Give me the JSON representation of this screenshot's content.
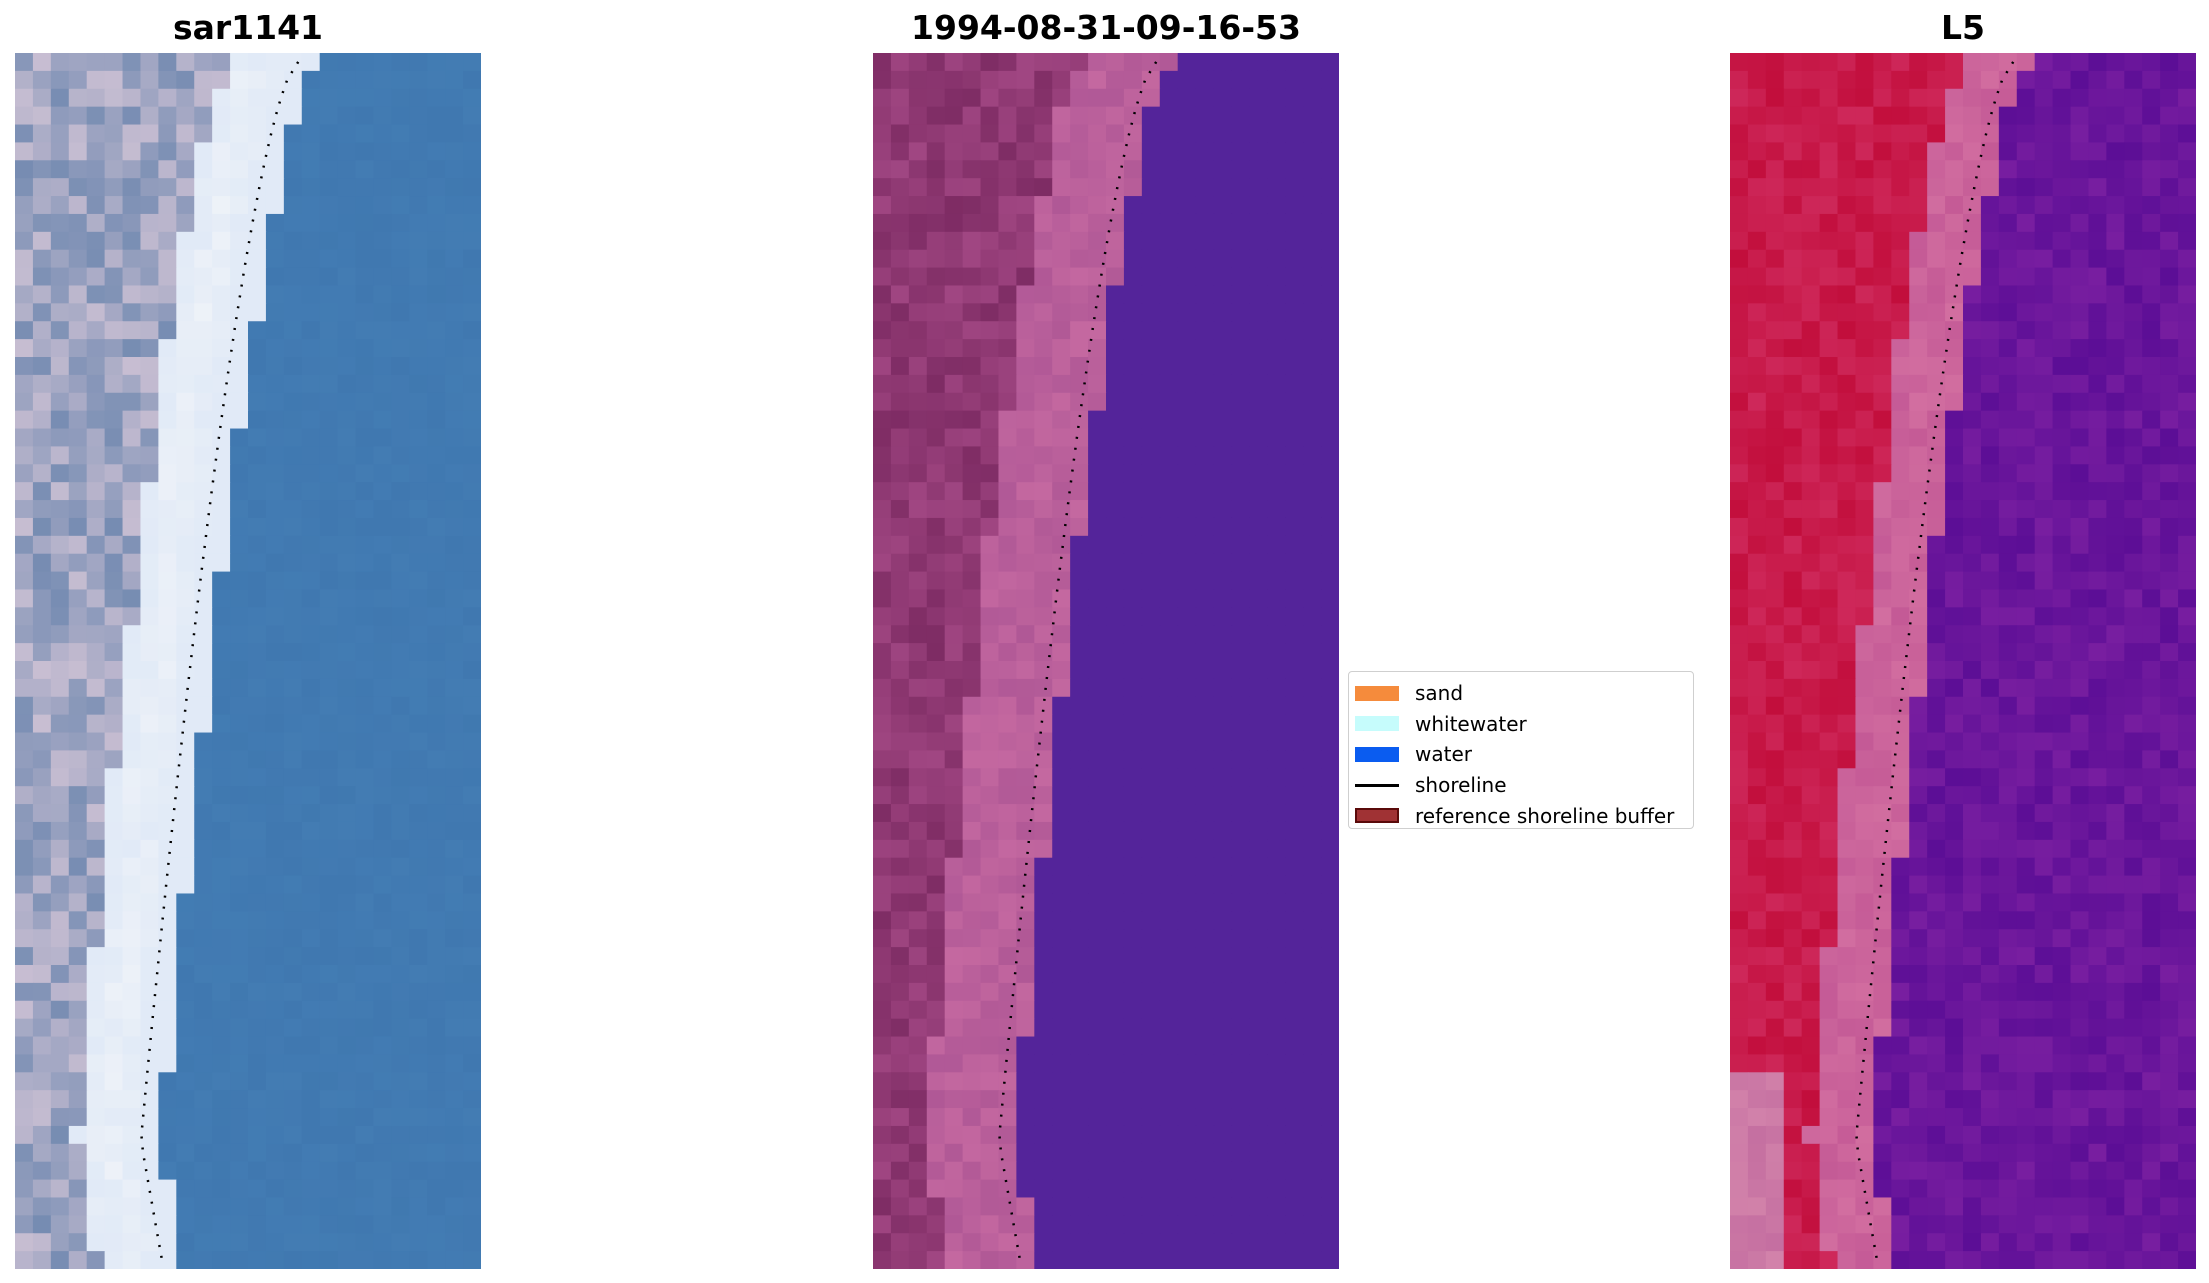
{
  "panels": [
    {
      "title": "sar1141",
      "kind": "rgb"
    },
    {
      "title": "1994-08-31-09-16-53",
      "kind": "classified"
    },
    {
      "title": "L5",
      "kind": "mndwi"
    }
  ],
  "legend": {
    "items": [
      {
        "label": "sand",
        "type": "patch",
        "color": "#f58b3c"
      },
      {
        "label": "whitewater",
        "type": "patch",
        "color": "#c6fcfc"
      },
      {
        "label": "water",
        "type": "patch",
        "color": "#0a5cf0"
      },
      {
        "label": "shoreline",
        "type": "line",
        "color": "#000000"
      },
      {
        "label": "reference shoreline buffer",
        "type": "patch",
        "color": "#a03234",
        "edge": "#5a0a0a"
      }
    ]
  },
  "colors": {
    "sea_blue": "#4078b0",
    "classified_water": "#54249a",
    "classified_land": "#8a3a78",
    "mndwi_land": "#c21a46",
    "mndwi_water": "#6a18a0"
  }
}
